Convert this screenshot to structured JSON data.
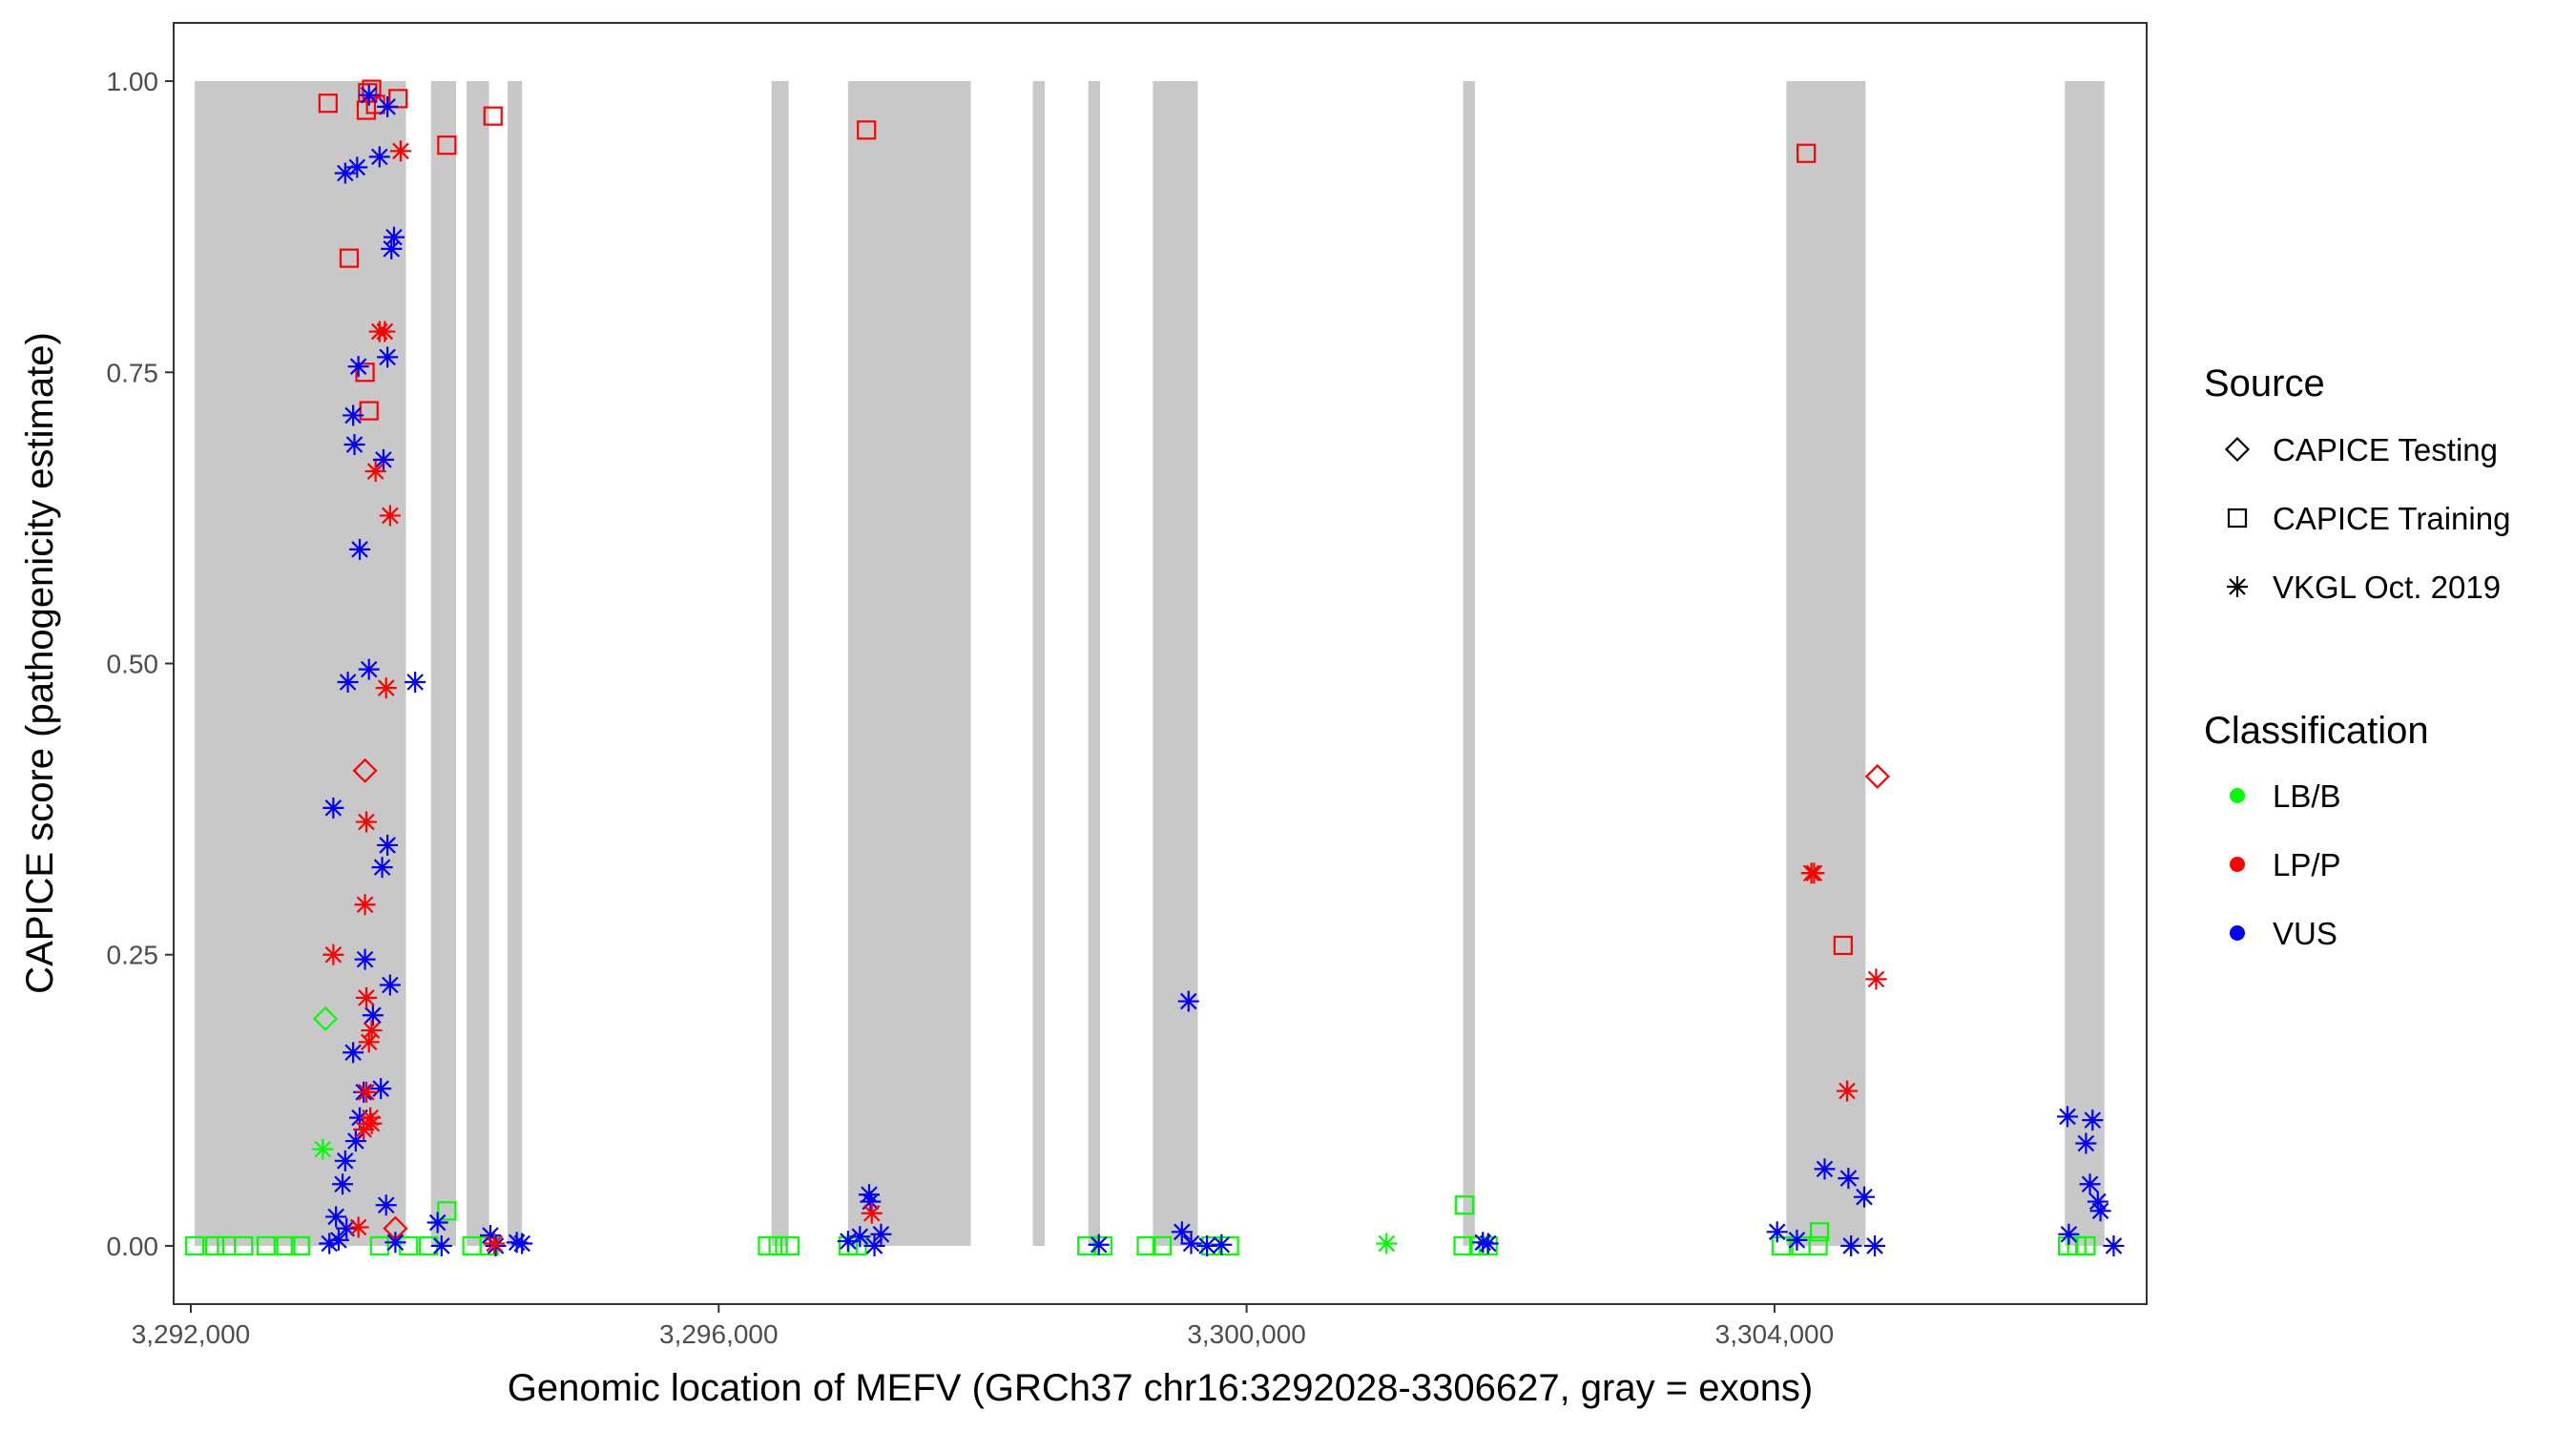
{
  "chart_data": {
    "type": "scatter",
    "title": "",
    "xlabel": "Genomic location of MEFV (GRCh37 chr16:3292028-3306627, gray = exons)",
    "ylabel": "CAPICE score (pathogenicity estimate)",
    "xlim": [
      3291870,
      3306820
    ],
    "ylim": [
      -0.05,
      1.05
    ],
    "x_ticks": [
      3292000,
      3296000,
      3300000,
      3304000
    ],
    "x_tick_labels": [
      "3,292,000",
      "3,296,000",
      "3,300,000",
      "3,304,000"
    ],
    "y_ticks": [
      0.0,
      0.25,
      0.5,
      0.75,
      1.0
    ],
    "y_tick_labels": [
      "0.00",
      "0.25",
      "0.50",
      "0.75",
      "1.00"
    ],
    "grid": false,
    "exon_bands": [
      [
        3292030,
        3293630
      ],
      [
        3293820,
        3294010
      ],
      [
        3294090,
        3294260
      ],
      [
        3294400,
        3294510
      ],
      [
        3296400,
        3296530
      ],
      [
        3296980,
        3297910
      ],
      [
        3298380,
        3298470
      ],
      [
        3298800,
        3298890
      ],
      [
        3299290,
        3299630
      ],
      [
        3301640,
        3301730
      ],
      [
        3304090,
        3304690
      ],
      [
        3306200,
        3306500
      ]
    ],
    "legend": {
      "position": "right",
      "source_title": "Source",
      "source_items": [
        {
          "label": "CAPICE Testing",
          "shape": "diamond"
        },
        {
          "label": "CAPICE Training",
          "shape": "square"
        },
        {
          "label": "VKGL Oct. 2019",
          "shape": "asterisk"
        }
      ],
      "class_title": "Classification",
      "class_items": [
        {
          "label": "LB/B",
          "color": "#00ff00"
        },
        {
          "label": "LP/P",
          "color": "#ff0000"
        },
        {
          "label": "VUS",
          "color": "#0000ff"
        }
      ]
    },
    "colors": {
      "LB/B": "#00ff00",
      "LP/P": "#ff0000",
      "VUS": "#0000ff"
    },
    "series": [
      {
        "source": "CAPICE Training",
        "classification": "LP/P",
        "points": [
          [
            3293040,
            0.981
          ],
          [
            3293340,
            0.99
          ],
          [
            3293370,
            0.993
          ],
          [
            3293400,
            0.98
          ],
          [
            3293330,
            0.975
          ],
          [
            3293570,
            0.985
          ],
          [
            3293940,
            0.945
          ],
          [
            3294290,
            0.97
          ],
          [
            3293200,
            0.848
          ],
          [
            3293320,
            0.75
          ],
          [
            3293350,
            0.717
          ],
          [
            3297120,
            0.958
          ],
          [
            3304240,
            0.938
          ],
          [
            3304520,
            0.258
          ]
        ]
      },
      {
        "source": "CAPICE Training",
        "classification": "LB/B",
        "points": [
          [
            3292030,
            0.0
          ],
          [
            3292180,
            0.0
          ],
          [
            3292270,
            0.0
          ],
          [
            3292400,
            0.0
          ],
          [
            3292570,
            0.0
          ],
          [
            3292720,
            0.0
          ],
          [
            3292830,
            0.0
          ],
          [
            3293430,
            0.0
          ],
          [
            3293650,
            0.0
          ],
          [
            3293800,
            0.0
          ],
          [
            3293940,
            0.03
          ],
          [
            3294130,
            0.0
          ],
          [
            3294260,
            0.0
          ],
          [
            3296370,
            0.0
          ],
          [
            3296450,
            0.0
          ],
          [
            3296540,
            0.0
          ],
          [
            3296980,
            0.0
          ],
          [
            3297050,
            0.0
          ],
          [
            3298790,
            0.0
          ],
          [
            3298910,
            0.0
          ],
          [
            3299240,
            0.0
          ],
          [
            3299360,
            0.0
          ],
          [
            3299730,
            0.0
          ],
          [
            3299870,
            0.0
          ],
          [
            3301640,
            0.0
          ],
          [
            3301650,
            0.035
          ],
          [
            3301760,
            0.0
          ],
          [
            3301830,
            0.0
          ],
          [
            3304050,
            0.0
          ],
          [
            3304200,
            0.0
          ],
          [
            3304330,
            0.0
          ],
          [
            3304340,
            0.012
          ],
          [
            3306220,
            0.0
          ],
          [
            3306290,
            0.0
          ],
          [
            3306360,
            0.0
          ]
        ]
      },
      {
        "source": "CAPICE Testing",
        "classification": "LP/P",
        "points": [
          [
            3293320,
            0.408
          ],
          [
            3293550,
            0.015
          ],
          [
            3304780,
            0.403
          ]
        ]
      },
      {
        "source": "CAPICE Testing",
        "classification": "LB/B",
        "points": [
          [
            3293020,
            0.195
          ]
        ]
      },
      {
        "source": "VKGL Oct. 2019",
        "classification": "VUS",
        "points": [
          [
            3293350,
            0.988
          ],
          [
            3293490,
            0.978
          ],
          [
            3293170,
            0.921
          ],
          [
            3293260,
            0.926
          ],
          [
            3293430,
            0.935
          ],
          [
            3293540,
            0.866
          ],
          [
            3293520,
            0.856
          ],
          [
            3293270,
            0.755
          ],
          [
            3293490,
            0.763
          ],
          [
            3293230,
            0.713
          ],
          [
            3293240,
            0.688
          ],
          [
            3293460,
            0.675
          ],
          [
            3293280,
            0.598
          ],
          [
            3293350,
            0.495
          ],
          [
            3293190,
            0.484
          ],
          [
            3293700,
            0.484
          ],
          [
            3293080,
            0.376
          ],
          [
            3293490,
            0.344
          ],
          [
            3293450,
            0.325
          ],
          [
            3293320,
            0.246
          ],
          [
            3293510,
            0.224
          ],
          [
            3293380,
            0.198
          ],
          [
            3293230,
            0.166
          ],
          [
            3293310,
            0.132
          ],
          [
            3293440,
            0.135
          ],
          [
            3293280,
            0.11
          ],
          [
            3293250,
            0.09
          ],
          [
            3293170,
            0.073
          ],
          [
            3293150,
            0.053
          ],
          [
            3293480,
            0.035
          ],
          [
            3293100,
            0.025
          ],
          [
            3293180,
            0.015
          ],
          [
            3293120,
            0.005
          ],
          [
            3293050,
            0.002
          ],
          [
            3293550,
            0.003
          ],
          [
            3293870,
            0.02
          ],
          [
            3293900,
            0.0
          ],
          [
            3294270,
            0.009
          ],
          [
            3294310,
            0.0
          ],
          [
            3294510,
            0.002
          ],
          [
            3294470,
            0.003
          ],
          [
            3296980,
            0.004
          ],
          [
            3297070,
            0.008
          ],
          [
            3297140,
            0.044
          ],
          [
            3297150,
            0.038
          ],
          [
            3297230,
            0.01
          ],
          [
            3297180,
            0.0
          ],
          [
            3298880,
            0.001
          ],
          [
            3299560,
            0.21
          ],
          [
            3299510,
            0.012
          ],
          [
            3299580,
            0.002
          ],
          [
            3299700,
            0.0
          ],
          [
            3299810,
            0.001
          ],
          [
            3301790,
            0.003
          ],
          [
            3301830,
            0.002
          ],
          [
            3304020,
            0.012
          ],
          [
            3304170,
            0.005
          ],
          [
            3304380,
            0.066
          ],
          [
            3304560,
            0.058
          ],
          [
            3304680,
            0.042
          ],
          [
            3304580,
            0.0
          ],
          [
            3304760,
            0.0
          ],
          [
            3306220,
            0.111
          ],
          [
            3306410,
            0.108
          ],
          [
            3306360,
            0.088
          ],
          [
            3306390,
            0.053
          ],
          [
            3306450,
            0.038
          ],
          [
            3306470,
            0.03
          ],
          [
            3306230,
            0.01
          ],
          [
            3306570,
            0.0
          ]
        ]
      },
      {
        "source": "VKGL Oct. 2019",
        "classification": "LP/P",
        "points": [
          [
            3293430,
            0.785
          ],
          [
            3293470,
            0.785
          ],
          [
            3293590,
            0.94
          ],
          [
            3293400,
            0.665
          ],
          [
            3293510,
            0.627
          ],
          [
            3293480,
            0.479
          ],
          [
            3293330,
            0.364
          ],
          [
            3293320,
            0.293
          ],
          [
            3293080,
            0.25
          ],
          [
            3293330,
            0.213
          ],
          [
            3293370,
            0.185
          ],
          [
            3293350,
            0.175
          ],
          [
            3293330,
            0.132
          ],
          [
            3293360,
            0.11
          ],
          [
            3293370,
            0.105
          ],
          [
            3293310,
            0.1
          ],
          [
            3293270,
            0.016
          ],
          [
            3294300,
            0.002
          ],
          [
            3297160,
            0.028
          ],
          [
            3304300,
            0.32
          ],
          [
            3304280,
            0.32
          ],
          [
            3304550,
            0.133
          ],
          [
            3304770,
            0.229
          ]
        ]
      },
      {
        "source": "VKGL Oct. 2019",
        "classification": "LB/B",
        "points": [
          [
            3293000,
            0.083
          ],
          [
            3301060,
            0.002
          ]
        ]
      }
    ]
  }
}
